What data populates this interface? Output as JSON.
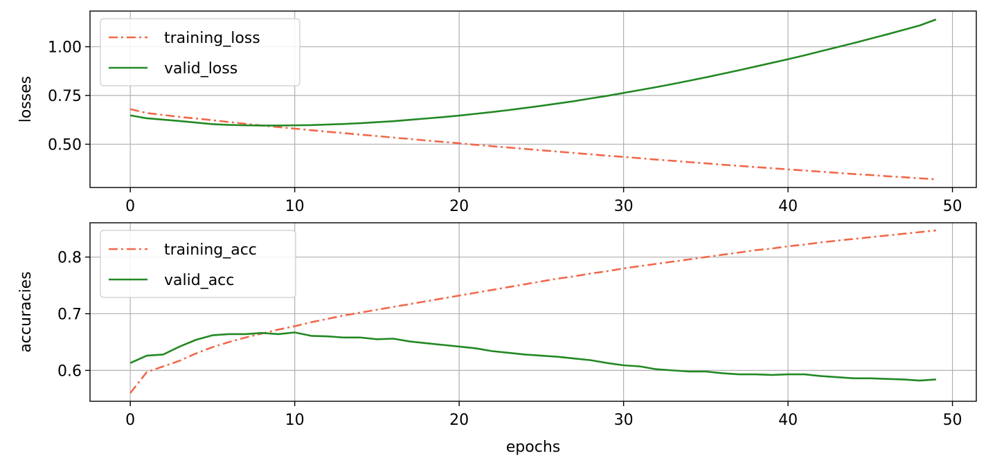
{
  "chart_data": [
    {
      "type": "line",
      "ylabel": "losses",
      "xlabel": "",
      "xlim": [
        -2.45,
        51.45
      ],
      "ylim": [
        0.278,
        1.183
      ],
      "xticks": [
        0,
        10,
        20,
        30,
        40,
        50
      ],
      "yticks": [
        0.5,
        0.75,
        1.0
      ],
      "ytick_labels": [
        "0.50",
        "0.75",
        "1.00"
      ],
      "grid": true,
      "legend_position": "upper-left",
      "series": [
        {
          "name": "training_loss",
          "color": "#f26749",
          "dash": "dashdot",
          "x": [
            0,
            1,
            2,
            3,
            4,
            5,
            6,
            7,
            8,
            9,
            10,
            11,
            12,
            13,
            14,
            15,
            16,
            17,
            18,
            19,
            20,
            21,
            22,
            23,
            24,
            25,
            26,
            27,
            28,
            29,
            30,
            31,
            32,
            33,
            34,
            35,
            36,
            37,
            38,
            39,
            40,
            41,
            42,
            43,
            44,
            45,
            46,
            47,
            48,
            49
          ],
          "values": [
            0.68,
            0.66,
            0.65,
            0.64,
            0.632,
            0.623,
            0.614,
            0.605,
            0.596,
            0.588,
            0.58,
            0.572,
            0.564,
            0.557,
            0.549,
            0.542,
            0.534,
            0.527,
            0.519,
            0.512,
            0.505,
            0.497,
            0.49,
            0.483,
            0.476,
            0.469,
            0.462,
            0.455,
            0.448,
            0.441,
            0.435,
            0.428,
            0.421,
            0.415,
            0.408,
            0.402,
            0.395,
            0.389,
            0.383,
            0.377,
            0.371,
            0.365,
            0.359,
            0.353,
            0.347,
            0.342,
            0.336,
            0.331,
            0.325,
            0.32
          ]
        },
        {
          "name": "valid_loss",
          "color": "#228822",
          "dash": "solid",
          "x": [
            0,
            1,
            2,
            3,
            4,
            5,
            6,
            7,
            8,
            9,
            10,
            11,
            12,
            13,
            14,
            15,
            16,
            17,
            18,
            19,
            20,
            21,
            22,
            23,
            24,
            25,
            26,
            27,
            28,
            29,
            30,
            31,
            32,
            33,
            34,
            35,
            36,
            37,
            38,
            39,
            40,
            41,
            42,
            43,
            44,
            45,
            46,
            47,
            48,
            49
          ],
          "values": [
            0.648,
            0.633,
            0.626,
            0.619,
            0.611,
            0.603,
            0.599,
            0.597,
            0.596,
            0.596,
            0.597,
            0.598,
            0.601,
            0.604,
            0.608,
            0.613,
            0.618,
            0.625,
            0.632,
            0.639,
            0.647,
            0.656,
            0.665,
            0.675,
            0.686,
            0.697,
            0.709,
            0.721,
            0.735,
            0.748,
            0.763,
            0.778,
            0.793,
            0.809,
            0.826,
            0.843,
            0.861,
            0.879,
            0.898,
            0.917,
            0.936,
            0.956,
            0.977,
            0.998,
            1.019,
            1.041,
            1.063,
            1.086,
            1.109,
            1.14
          ]
        }
      ]
    },
    {
      "type": "line",
      "ylabel": "accuracies",
      "xlabel": "epochs",
      "xlim": [
        -2.45,
        51.45
      ],
      "ylim": [
        0.5455,
        0.8605
      ],
      "xticks": [
        0,
        10,
        20,
        30,
        40,
        50
      ],
      "yticks": [
        0.6,
        0.7,
        0.8
      ],
      "ytick_labels": [
        "0.6",
        "0.7",
        "0.8"
      ],
      "grid": true,
      "legend_position": "upper-left",
      "series": [
        {
          "name": "training_acc",
          "color": "#f26749",
          "dash": "dashdot",
          "x": [
            0,
            1,
            2,
            3,
            4,
            5,
            6,
            7,
            8,
            9,
            10,
            11,
            12,
            13,
            14,
            15,
            16,
            17,
            18,
            19,
            20,
            21,
            22,
            23,
            24,
            25,
            26,
            27,
            28,
            29,
            30,
            31,
            32,
            33,
            34,
            35,
            36,
            37,
            38,
            39,
            40,
            41,
            42,
            43,
            44,
            45,
            46,
            47,
            48,
            49
          ],
          "values": [
            0.56,
            0.597,
            0.607,
            0.617,
            0.63,
            0.641,
            0.65,
            0.658,
            0.665,
            0.672,
            0.678,
            0.685,
            0.691,
            0.697,
            0.702,
            0.707,
            0.712,
            0.717,
            0.722,
            0.727,
            0.732,
            0.737,
            0.742,
            0.747,
            0.752,
            0.757,
            0.762,
            0.766,
            0.771,
            0.775,
            0.78,
            0.784,
            0.788,
            0.792,
            0.796,
            0.8,
            0.804,
            0.808,
            0.812,
            0.815,
            0.819,
            0.822,
            0.826,
            0.829,
            0.832,
            0.835,
            0.838,
            0.841,
            0.844,
            0.847
          ]
        },
        {
          "name": "valid_acc",
          "color": "#228822",
          "dash": "solid",
          "x": [
            0,
            1,
            2,
            3,
            4,
            5,
            6,
            7,
            8,
            9,
            10,
            11,
            12,
            13,
            14,
            15,
            16,
            17,
            18,
            19,
            20,
            21,
            22,
            23,
            24,
            25,
            26,
            27,
            28,
            29,
            30,
            31,
            32,
            33,
            34,
            35,
            36,
            37,
            38,
            39,
            40,
            41,
            42,
            43,
            44,
            45,
            46,
            47,
            48,
            49
          ],
          "values": [
            0.613,
            0.626,
            0.628,
            0.642,
            0.654,
            0.662,
            0.664,
            0.664,
            0.666,
            0.664,
            0.667,
            0.661,
            0.66,
            0.658,
            0.658,
            0.655,
            0.656,
            0.651,
            0.648,
            0.645,
            0.642,
            0.639,
            0.634,
            0.631,
            0.628,
            0.626,
            0.624,
            0.621,
            0.618,
            0.613,
            0.609,
            0.607,
            0.602,
            0.6,
            0.598,
            0.598,
            0.595,
            0.593,
            0.593,
            0.592,
            0.593,
            0.593,
            0.59,
            0.588,
            0.586,
            0.586,
            0.585,
            0.584,
            0.582,
            0.584
          ]
        }
      ]
    }
  ]
}
